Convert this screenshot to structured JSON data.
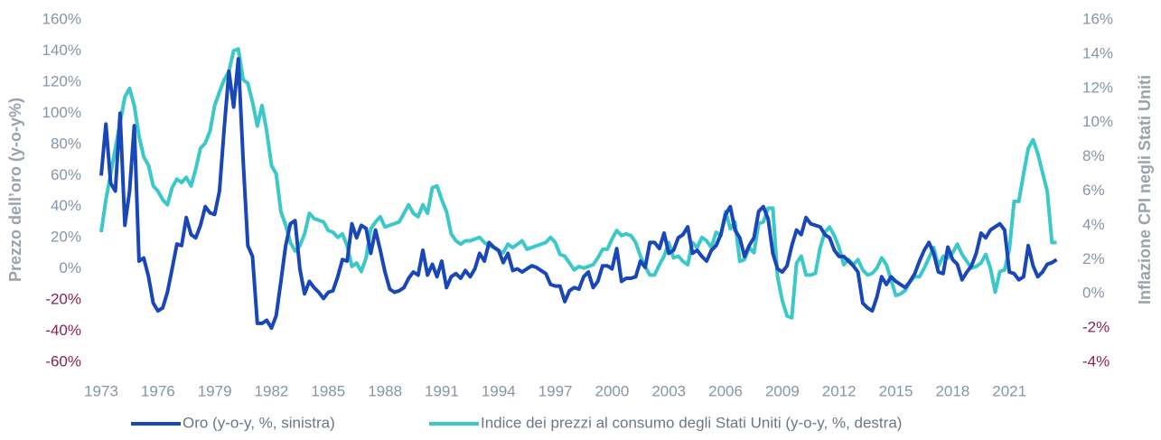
{
  "chart_data": {
    "type": "line",
    "y_label": "Prezzo dell’oro (y-o-y%)",
    "y2_label": "Inflazione CPI negli Stati Uniti",
    "xlim": [
      1973,
      2024
    ],
    "xticks": [
      1973,
      1976,
      1979,
      1982,
      1985,
      1988,
      1991,
      1994,
      1997,
      2000,
      2003,
      2006,
      2009,
      2012,
      2015,
      2018,
      2021
    ],
    "ylim": [
      -60,
      160
    ],
    "yticks": [
      {
        "value": -60,
        "label": "-60%"
      },
      {
        "value": -40,
        "label": "-40%"
      },
      {
        "value": -20,
        "label": "-20%"
      },
      {
        "value": 0,
        "label": "0%"
      },
      {
        "value": 20,
        "label": "20%"
      },
      {
        "value": 40,
        "label": "40%"
      },
      {
        "value": 60,
        "label": "60%"
      },
      {
        "value": 80,
        "label": "80%"
      },
      {
        "value": 100,
        "label": "100%"
      },
      {
        "value": 120,
        "label": "120%"
      },
      {
        "value": 140,
        "label": "140%"
      },
      {
        "value": 160,
        "label": "160%"
      }
    ],
    "y2lim": [
      -4,
      16
    ],
    "y2ticks": [
      {
        "value": -4,
        "label": "-4%"
      },
      {
        "value": -2,
        "label": "-2%"
      },
      {
        "value": 0,
        "label": "0%"
      },
      {
        "value": 2,
        "label": "2%"
      },
      {
        "value": 4,
        "label": "4%"
      },
      {
        "value": 6,
        "label": "6%"
      },
      {
        "value": 8,
        "label": "8%"
      },
      {
        "value": 10,
        "label": "10%"
      },
      {
        "value": 12,
        "label": "12%"
      },
      {
        "value": 14,
        "label": "14%"
      },
      {
        "value": 16,
        "label": "16%"
      }
    ],
    "negative_tick_color": "#8b2252",
    "grid": false,
    "legend": "bottom",
    "x": [
      1973,
      1973.25,
      1973.5,
      1973.75,
      1974,
      1974.25,
      1974.5,
      1974.75,
      1975,
      1975.25,
      1975.5,
      1975.75,
      1976,
      1976.25,
      1976.5,
      1976.75,
      1977,
      1977.25,
      1977.5,
      1977.75,
      1978,
      1978.25,
      1978.5,
      1978.75,
      1979,
      1979.25,
      1979.5,
      1979.75,
      1980,
      1980.25,
      1980.5,
      1980.75,
      1981,
      1981.25,
      1981.5,
      1981.75,
      1982,
      1982.25,
      1982.5,
      1982.75,
      1983,
      1983.25,
      1983.5,
      1983.75,
      1984,
      1984.25,
      1984.5,
      1984.75,
      1985,
      1985.25,
      1985.5,
      1985.75,
      1986,
      1986.25,
      1986.5,
      1986.75,
      1987,
      1987.25,
      1987.5,
      1987.75,
      1988,
      1988.25,
      1988.5,
      1988.75,
      1989,
      1989.25,
      1989.5,
      1989.75,
      1990,
      1990.25,
      1990.5,
      1990.75,
      1991,
      1991.25,
      1991.5,
      1991.75,
      1992,
      1992.25,
      1992.5,
      1992.75,
      1993,
      1993.25,
      1993.5,
      1993.75,
      1994,
      1994.25,
      1994.5,
      1994.75,
      1995,
      1995.25,
      1995.5,
      1995.75,
      1996,
      1996.25,
      1996.5,
      1996.75,
      1997,
      1997.25,
      1997.5,
      1997.75,
      1998,
      1998.25,
      1998.5,
      1998.75,
      1999,
      1999.25,
      1999.5,
      1999.75,
      2000,
      2000.25,
      2000.5,
      2000.75,
      2001,
      2001.25,
      2001.5,
      2001.75,
      2002,
      2002.25,
      2002.5,
      2002.75,
      2003,
      2003.25,
      2003.5,
      2003.75,
      2004,
      2004.25,
      2004.5,
      2004.75,
      2005,
      2005.25,
      2005.5,
      2005.75,
      2006,
      2006.25,
      2006.5,
      2006.75,
      2007,
      2007.25,
      2007.5,
      2007.75,
      2008,
      2008.25,
      2008.5,
      2008.75,
      2009,
      2009.25,
      2009.5,
      2009.75,
      2010,
      2010.25,
      2010.5,
      2010.75,
      2011,
      2011.25,
      2011.5,
      2011.75,
      2012,
      2012.25,
      2012.5,
      2012.75,
      2013,
      2013.25,
      2013.5,
      2013.75,
      2014,
      2014.25,
      2014.5,
      2014.75,
      2015,
      2015.25,
      2015.5,
      2015.75,
      2016,
      2016.25,
      2016.5,
      2016.75,
      2017,
      2017.25,
      2017.5,
      2017.75,
      2018,
      2018.25,
      2018.5,
      2018.75,
      2019,
      2019.25,
      2019.5,
      2019.75,
      2020,
      2020.25,
      2020.5,
      2020.75,
      2021,
      2021.25,
      2021.5,
      2021.75,
      2022,
      2022.25,
      2022.5,
      2022.75,
      2023,
      2023.25,
      2023.5
    ],
    "series": [
      {
        "name": "Oro (y-o-y, %, sinistra)",
        "color": "#1a47b8",
        "axis": "y",
        "values": [
          60,
          93,
          55,
          50,
          100,
          28,
          50,
          92,
          5,
          7,
          -5,
          -22,
          -27,
          -25,
          -15,
          0,
          16,
          15,
          33,
          22,
          20,
          28,
          40,
          36,
          35,
          50,
          90,
          127,
          104,
          135,
          70,
          15,
          8,
          -35,
          -35,
          -33,
          -38,
          -30,
          -8,
          15,
          29,
          31,
          0,
          -16,
          -8,
          -12,
          -15,
          -19,
          -15,
          -14,
          -5,
          6,
          5,
          29,
          20,
          28,
          26,
          10,
          25,
          12,
          -2,
          -13,
          -15,
          -14,
          -12,
          -6,
          -2,
          -4,
          12,
          -4,
          3,
          -5,
          5,
          -12,
          -5,
          -3,
          -6,
          -1,
          -5,
          0,
          10,
          5,
          17,
          14,
          12,
          4,
          10,
          -1,
          0,
          -2,
          0,
          2,
          1,
          -1,
          -3,
          -10,
          -11,
          -11,
          -21,
          -14,
          -12,
          -13,
          -5,
          -2,
          -12,
          -8,
          2,
          2,
          0,
          13,
          -8,
          -6,
          -6,
          -5,
          5,
          1,
          17,
          17,
          13,
          23,
          10,
          12,
          20,
          22,
          27,
          10,
          12,
          8,
          5,
          12,
          15,
          22,
          35,
          40,
          25,
          20,
          8,
          15,
          20,
          37,
          40,
          32,
          10,
          0,
          -2,
          2,
          15,
          25,
          22,
          33,
          29,
          28,
          27,
          22,
          20,
          12,
          8,
          8,
          5,
          2,
          -2,
          -22,
          -25,
          -27,
          -18,
          -5,
          -10,
          -5,
          -8,
          -10,
          -12,
          -8,
          -3,
          5,
          12,
          17,
          10,
          -2,
          -3,
          14,
          6,
          3,
          -7,
          -2,
          2,
          10,
          23,
          20,
          25,
          27,
          29,
          25,
          -2,
          -3,
          -7,
          -5,
          15,
          2,
          -5,
          -2,
          3,
          4,
          6
        ]
      },
      {
        "name": "Indice dei prezzi al consumo degli Stati Uniti (y-o-y, %, destra)",
        "color": "#3cc8c8",
        "axis": "y2",
        "values": [
          3.6,
          5.5,
          7,
          8.5,
          10,
          11.5,
          12,
          11,
          9.2,
          8,
          7.5,
          6.3,
          6,
          5.5,
          5.2,
          6.2,
          6.7,
          6.5,
          6.8,
          6.3,
          7.3,
          8.5,
          8.8,
          9.5,
          11,
          11.8,
          12.5,
          13,
          14.2,
          14.3,
          12.5,
          12.3,
          11.2,
          9.8,
          11,
          9.5,
          7.5,
          7,
          4.8,
          4,
          3,
          2.5,
          2.8,
          3.5,
          4.7,
          4.4,
          4.3,
          4.2,
          3.7,
          3.6,
          3.3,
          3.5,
          2.8,
          1.6,
          1.8,
          1.3,
          2.1,
          3.8,
          4.2,
          4.5,
          3.9,
          4,
          4.1,
          4.2,
          4.7,
          5.2,
          4.7,
          4.5,
          5.2,
          4.7,
          6.2,
          6.3,
          5.5,
          4.8,
          3.5,
          3.1,
          2.9,
          3.1,
          3.1,
          3.2,
          3.3,
          3,
          2.8,
          2.7,
          2.5,
          2.4,
          2.9,
          2.7,
          2.9,
          3.1,
          2.6,
          2.7,
          2.8,
          2.9,
          3,
          3.3,
          3,
          2.3,
          2.2,
          1.8,
          1.4,
          1.6,
          1.5,
          1.6,
          1.7,
          2.1,
          2.6,
          2.6,
          3.2,
          3.7,
          3.4,
          3.5,
          3.4,
          3,
          2.2,
          1.6,
          1.1,
          1.1,
          1.7,
          2.2,
          3,
          2.1,
          2.2,
          1.9,
          1.7,
          3,
          2.7,
          3.3,
          3.1,
          2.7,
          3.6,
          3.4,
          4.8,
          3.8,
          4.2,
          1.9,
          2,
          2.7,
          2.4,
          4.1,
          4.2,
          5,
          5,
          1,
          -0.4,
          -1.3,
          -1.4,
          1.8,
          2.2,
          1.1,
          1.1,
          1.2,
          2.7,
          3.6,
          3.9,
          3.4,
          2.7,
          1.7,
          2,
          1.7,
          2,
          1.4,
          1.1,
          1.2,
          1.5,
          2.1,
          1.7,
          0.8,
          -0.1,
          0,
          0.2,
          0.7,
          1,
          1,
          1.5,
          2.1,
          2.7,
          1.6,
          2.2,
          2.1,
          2.4,
          2.9,
          2.3,
          1.9,
          1.5,
          1.6,
          1.8,
          2.3,
          1.5,
          0.1,
          1.3,
          1.4,
          2.6,
          5.4,
          5.4,
          7,
          8.5,
          9,
          8.2,
          7.1,
          6,
          3,
          3
        ]
      }
    ]
  }
}
